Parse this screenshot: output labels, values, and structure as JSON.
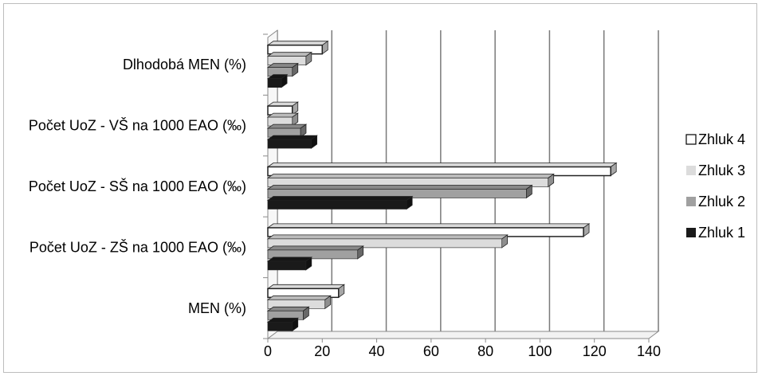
{
  "chart_data": {
    "type": "bar",
    "orientation": "horizontal",
    "style": "3d",
    "categories": [
      "MEN (%)",
      "Počet UoZ - ZŠ na 1000 EAO (‰)",
      "Počet UoZ - SŠ na 1000 EAO (‰)",
      "Počet UoZ - VŠ na 1000 EAO (‰)",
      "Dlhodobá MEN (%)"
    ],
    "series": [
      {
        "name": "Zhluk 1",
        "color": "#1a1a1a",
        "values": [
          9,
          14,
          51,
          16,
          5
        ]
      },
      {
        "name": "Zhluk 2",
        "color": "#a0a0a0",
        "values": [
          13,
          33,
          95,
          12,
          9
        ]
      },
      {
        "name": "Zhluk 3",
        "color": "#dcdcdc",
        "values": [
          21,
          86,
          103,
          9,
          14
        ]
      },
      {
        "name": "Zhluk 4",
        "color": "#ffffff",
        "values": [
          26,
          116,
          126,
          9,
          20
        ]
      }
    ],
    "xlim": [
      0,
      140
    ],
    "ticks": [
      0,
      20,
      40,
      60,
      80,
      100,
      120,
      140
    ],
    "grid": true,
    "legend": "right"
  }
}
